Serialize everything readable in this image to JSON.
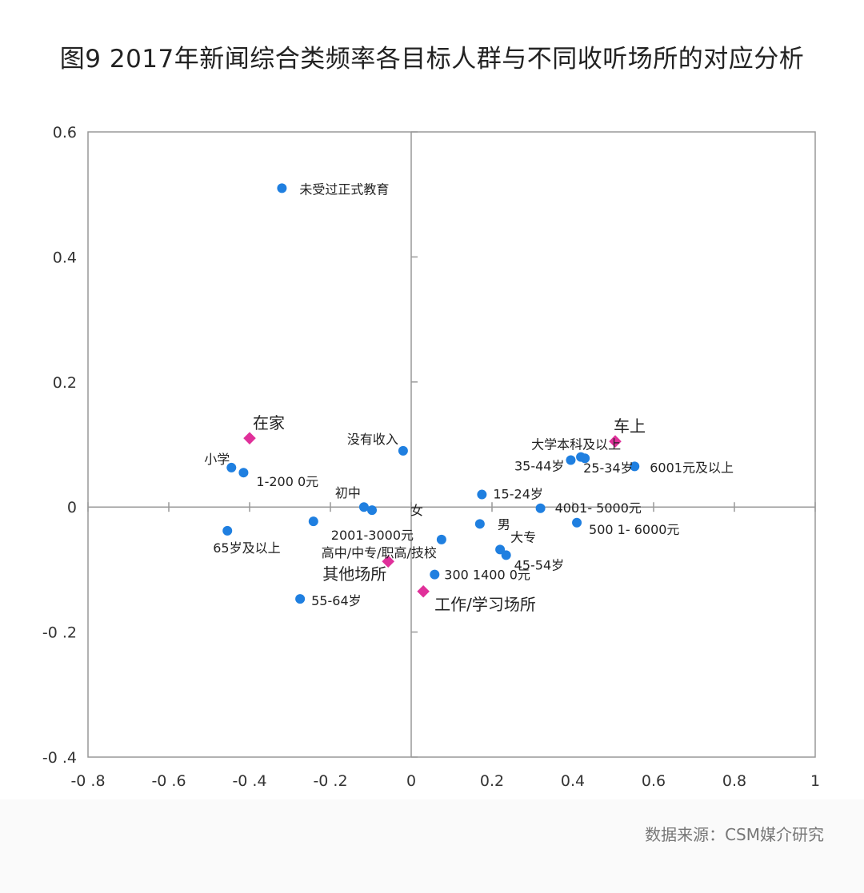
{
  "title": "图9 2017年新闻综合类频率各目标人群与不同收听场所的对应分析",
  "source": "数据来源：CSM媒介研究",
  "colors": {
    "point": "#1f7fe0",
    "place": "#e0309a",
    "axis": "#999999",
    "background": "#ffffff"
  },
  "chart_data": {
    "type": "scatter",
    "title": "图9 2017年新闻综合类频率各目标人群与不同收听场所的对应分析",
    "xlim": [
      -0.8,
      1
    ],
    "ylim": [
      -0.4,
      0.6
    ],
    "x_ticks": [
      -0.8,
      -0.6,
      -0.4,
      -0.2,
      0,
      0.2,
      0.4,
      0.6,
      0.8,
      1
    ],
    "x_tick_labels": [
      "-0 .8",
      "-0 .6",
      "-0 .4",
      "-0 .2",
      "0",
      "0.2",
      "0.4",
      "0.6",
      "0.8",
      "1"
    ],
    "y_ticks": [
      -0.4,
      -0.2,
      0,
      0.2,
      0.4,
      0.6
    ],
    "y_tick_labels": [
      "-0 .4",
      "-0 .2",
      "0",
      "0.2",
      "0.4",
      "0.6"
    ],
    "grid": false,
    "series": [
      {
        "marker": "circle",
        "points": [
          {
            "label": "未受过正式教育",
            "x": -0.32,
            "y": 0.51
          },
          {
            "label": "没有收入",
            "x": -0.02,
            "y": 0.09
          },
          {
            "label": "小学",
            "x": -0.445,
            "y": 0.063
          },
          {
            "label": "1-200 0元",
            "x": -0.415,
            "y": 0.055
          },
          {
            "label": "初中",
            "x": -0.117,
            "y": 0.0
          },
          {
            "label": "女",
            "x": -0.097,
            "y": -0.005
          },
          {
            "label": "2001-3000元",
            "x": -0.242,
            "y": -0.023
          },
          {
            "label": "65岁及以上",
            "x": -0.455,
            "y": -0.038
          },
          {
            "label": "高中/中专/职高/技校",
            "x": 0.075,
            "y": -0.052
          },
          {
            "label": "300 1400 0元",
            "x": 0.058,
            "y": -0.108
          },
          {
            "label": "55-64岁",
            "x": -0.275,
            "y": -0.147
          },
          {
            "label": "男",
            "x": 0.17,
            "y": -0.027
          },
          {
            "label": "大专",
            "x": 0.22,
            "y": -0.068
          },
          {
            "label": "45-54岁",
            "x": 0.235,
            "y": -0.077
          },
          {
            "label": "15-24岁",
            "x": 0.175,
            "y": 0.02
          },
          {
            "label": "4001- 5000元",
            "x": 0.32,
            "y": -0.002
          },
          {
            "label": "500 1- 6000元",
            "x": 0.41,
            "y": -0.025
          },
          {
            "label": "大学本科及以上",
            "x": 0.42,
            "y": 0.08
          },
          {
            "label": "35-44岁",
            "x": 0.395,
            "y": 0.075
          },
          {
            "label": "25-34岁",
            "x": 0.43,
            "y": 0.078
          },
          {
            "label": "6001元及以上",
            "x": 0.553,
            "y": 0.065
          }
        ]
      },
      {
        "marker": "diamond",
        "points": [
          {
            "label": "在家",
            "x": -0.4,
            "y": 0.11
          },
          {
            "label": "车上",
            "x": 0.505,
            "y": 0.105
          },
          {
            "label": "其他场所",
            "x": -0.057,
            "y": -0.087
          },
          {
            "label": "工作/学习场所",
            "x": 0.03,
            "y": -0.135
          }
        ]
      }
    ]
  }
}
